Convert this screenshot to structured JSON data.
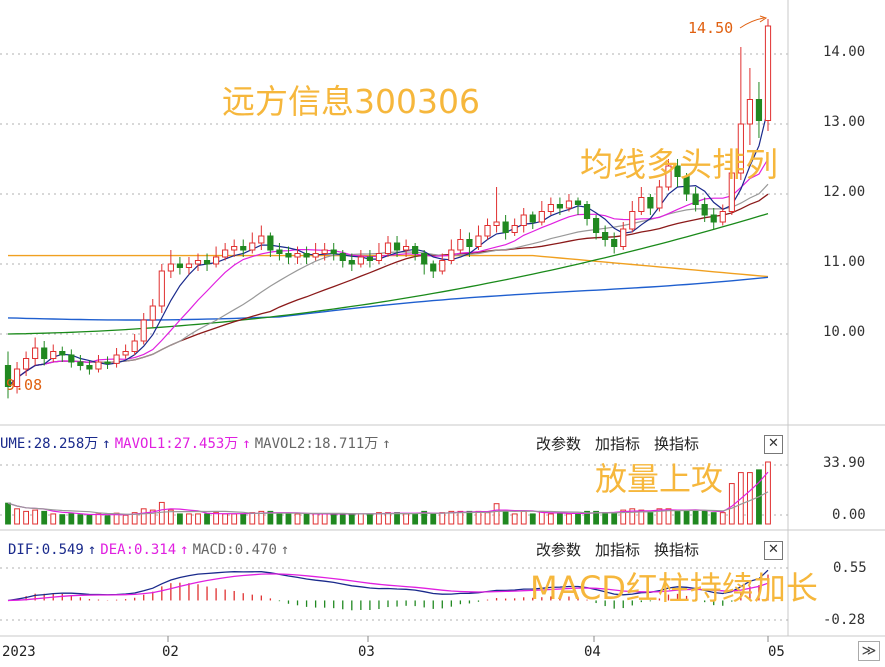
{
  "captions": {
    "stock": "远方信息300306",
    "ma_align": "均线多头排列",
    "volume_up": "放量上攻",
    "macd_red": "MACD红柱持续加长"
  },
  "markers": {
    "high": "14.50",
    "low": "9.08"
  },
  "price_axis": {
    "labels": [
      "14.00",
      "13.00",
      "12.00",
      "11.00",
      "10.00"
    ]
  },
  "volume_panel": {
    "legend": [
      {
        "text": "UME:28.258万",
        "color": "#1a2a8c"
      },
      {
        "text": "↑",
        "color": "#1a2a8c"
      },
      {
        "text": "MAVOL1:27.453万",
        "color": "#e020e0"
      },
      {
        "text": "↑",
        "color": "#e020e0"
      },
      {
        "text": "MAVOL2:18.711万",
        "color": "#666666"
      },
      {
        "text": "↑",
        "color": "#666666"
      }
    ],
    "axis": [
      "33.90",
      "0.00"
    ]
  },
  "macd_panel": {
    "legend": [
      {
        "text": "DIF:0.549",
        "color": "#1a2a8c"
      },
      {
        "text": "↑",
        "color": "#1a2a8c"
      },
      {
        "text": "DEA:0.314",
        "color": "#e020e0"
      },
      {
        "text": "↑",
        "color": "#e020e0"
      },
      {
        "text": "MACD:0.470",
        "color": "#666666"
      },
      {
        "text": "↑",
        "color": "#666666"
      }
    ],
    "axis": [
      "0.55",
      "-0.28"
    ]
  },
  "toolbar": {
    "params": "改参数",
    "add": "加指标",
    "switch": "换指标",
    "close": "✕"
  },
  "x_axis": {
    "labels": [
      "2023",
      "02",
      "03",
      "04",
      "05"
    ],
    "nav": "≫"
  },
  "colors": {
    "up": "#e03030",
    "down": "#208820",
    "ma5": "#1a2a8c",
    "ma10": "#e020e0",
    "ma20": "#999999",
    "ma30": "#8b1a1a",
    "ma60": "#1a8a1a",
    "ma120": "#1f5fcf",
    "ma250": "#f0a020",
    "caption": "#f6b73c",
    "grid": "#b0b0b0"
  },
  "chart_data": {
    "type": "candlestick",
    "x_ticks": [
      "2023",
      "02",
      "03",
      "04",
      "05"
    ],
    "candles": [
      [
        9.55,
        9.25,
        9.75,
        9.08
      ],
      [
        9.25,
        9.5,
        9.6,
        9.15
      ],
      [
        9.5,
        9.65,
        9.75,
        9.4
      ],
      [
        9.65,
        9.8,
        9.95,
        9.55
      ],
      [
        9.8,
        9.65,
        9.9,
        9.55
      ],
      [
        9.65,
        9.75,
        9.85,
        9.6
      ],
      [
        9.75,
        9.7,
        9.82,
        9.6
      ],
      [
        9.7,
        9.6,
        9.78,
        9.52
      ],
      [
        9.6,
        9.55,
        9.7,
        9.48
      ],
      [
        9.55,
        9.5,
        9.62,
        9.42
      ],
      [
        9.5,
        9.6,
        9.7,
        9.45
      ],
      [
        9.6,
        9.58,
        9.68,
        9.5
      ],
      [
        9.58,
        9.7,
        9.8,
        9.52
      ],
      [
        9.7,
        9.75,
        9.85,
        9.65
      ],
      [
        9.75,
        9.9,
        10.0,
        9.7
      ],
      [
        9.9,
        10.2,
        10.3,
        9.85
      ],
      [
        10.2,
        10.4,
        10.5,
        10.1
      ],
      [
        10.4,
        10.9,
        11.0,
        10.3
      ],
      [
        10.9,
        11.0,
        11.2,
        10.8
      ],
      [
        11.0,
        10.95,
        11.1,
        10.85
      ],
      [
        10.95,
        11.0,
        11.1,
        10.85
      ],
      [
        11.0,
        11.05,
        11.15,
        10.9
      ],
      [
        11.05,
        11.0,
        11.15,
        10.9
      ],
      [
        11.0,
        11.1,
        11.25,
        10.95
      ],
      [
        11.1,
        11.2,
        11.3,
        11.05
      ],
      [
        11.2,
        11.25,
        11.35,
        11.1
      ],
      [
        11.25,
        11.2,
        11.35,
        11.1
      ],
      [
        11.2,
        11.3,
        11.45,
        11.15
      ],
      [
        11.3,
        11.4,
        11.55,
        11.2
      ],
      [
        11.4,
        11.2,
        11.45,
        11.1
      ],
      [
        11.2,
        11.15,
        11.3,
        11.05
      ],
      [
        11.15,
        11.1,
        11.25,
        11.0
      ],
      [
        11.1,
        11.15,
        11.25,
        11.0
      ],
      [
        11.15,
        11.1,
        11.25,
        11.0
      ],
      [
        11.1,
        11.15,
        11.3,
        11.05
      ],
      [
        11.15,
        11.2,
        11.3,
        11.05
      ],
      [
        11.2,
        11.15,
        11.3,
        11.05
      ],
      [
        11.15,
        11.05,
        11.2,
        10.95
      ],
      [
        11.05,
        11.0,
        11.15,
        10.9
      ],
      [
        11.0,
        11.1,
        11.2,
        10.95
      ],
      [
        11.1,
        11.05,
        11.2,
        10.95
      ],
      [
        11.05,
        11.15,
        11.3,
        11.0
      ],
      [
        11.15,
        11.3,
        11.4,
        11.1
      ],
      [
        11.3,
        11.2,
        11.4,
        11.1
      ],
      [
        11.2,
        11.25,
        11.35,
        11.1
      ],
      [
        11.25,
        11.15,
        11.3,
        11.05
      ],
      [
        11.15,
        11.0,
        11.2,
        10.85
      ],
      [
        11.0,
        10.9,
        11.05,
        10.8
      ],
      [
        10.9,
        11.05,
        11.15,
        10.85
      ],
      [
        11.05,
        11.2,
        11.35,
        11.0
      ],
      [
        11.2,
        11.35,
        11.5,
        11.15
      ],
      [
        11.35,
        11.25,
        11.45,
        11.1
      ],
      [
        11.25,
        11.4,
        11.55,
        11.2
      ],
      [
        11.4,
        11.55,
        11.65,
        11.35
      ],
      [
        11.55,
        11.6,
        12.1,
        11.45
      ],
      [
        11.6,
        11.45,
        11.7,
        11.35
      ],
      [
        11.45,
        11.55,
        11.65,
        11.4
      ],
      [
        11.55,
        11.7,
        11.8,
        11.45
      ],
      [
        11.7,
        11.6,
        11.75,
        11.5
      ],
      [
        11.6,
        11.75,
        11.9,
        11.55
      ],
      [
        11.75,
        11.85,
        11.95,
        11.7
      ],
      [
        11.85,
        11.8,
        11.95,
        11.7
      ],
      [
        11.8,
        11.9,
        12.0,
        11.75
      ],
      [
        11.9,
        11.85,
        11.95,
        11.7
      ],
      [
        11.85,
        11.65,
        11.9,
        11.55
      ],
      [
        11.65,
        11.45,
        11.7,
        11.35
      ],
      [
        11.45,
        11.35,
        11.55,
        11.25
      ],
      [
        11.35,
        11.25,
        11.45,
        11.15
      ],
      [
        11.25,
        11.5,
        11.6,
        11.2
      ],
      [
        11.5,
        11.75,
        11.9,
        11.45
      ],
      [
        11.75,
        11.95,
        12.1,
        11.7
      ],
      [
        11.95,
        11.8,
        12.0,
        11.7
      ],
      [
        11.8,
        12.1,
        12.2,
        11.75
      ],
      [
        12.1,
        12.4,
        12.5,
        12.05
      ],
      [
        12.4,
        12.25,
        12.5,
        12.1
      ],
      [
        12.25,
        12.0,
        12.3,
        11.9
      ],
      [
        12.0,
        11.85,
        12.1,
        11.75
      ],
      [
        11.85,
        11.7,
        11.95,
        11.6
      ],
      [
        11.7,
        11.6,
        11.8,
        11.5
      ],
      [
        11.6,
        11.75,
        11.85,
        11.55
      ],
      [
        11.75,
        12.3,
        12.4,
        11.7
      ],
      [
        12.3,
        13.0,
        14.1,
        12.2
      ],
      [
        13.0,
        13.35,
        13.8,
        12.7
      ],
      [
        13.35,
        13.05,
        13.6,
        12.8
      ],
      [
        13.05,
        14.4,
        14.5,
        12.9
      ]
    ],
    "volume_axis_range": [
      0.0,
      33.9
    ],
    "macd_axis_range": [
      -0.28,
      0.55
    ],
    "last_values": {
      "VOLUME": "28.258万",
      "MAVOL1": "27.453万",
      "MAVOL2": "18.711万",
      "DIF": 0.549,
      "DEA": 0.314,
      "MACD": 0.47
    },
    "price_axis_range": [
      9.0,
      14.6
    ]
  }
}
